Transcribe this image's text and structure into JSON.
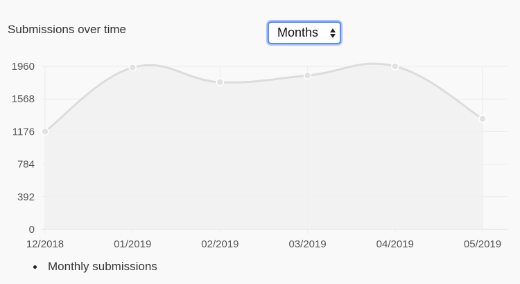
{
  "title": "Submissions over time",
  "period_select": {
    "selected": "Months"
  },
  "legend": {
    "items": [
      "Monthly submissions"
    ]
  },
  "chart_data": {
    "type": "area",
    "title": "Submissions over time",
    "xlabel": "",
    "ylabel": "",
    "x": [
      "12/2018",
      "01/2019",
      "02/2019",
      "03/2019",
      "04/2019",
      "05/2019"
    ],
    "yticks": [
      0,
      392,
      784,
      1176,
      1568,
      1960
    ],
    "ylim": [
      0,
      1960
    ],
    "grid": true,
    "legend_position": "bottom-left",
    "series": [
      {
        "name": "Monthly submissions",
        "values": [
          1176,
          1945,
          1770,
          1850,
          1960,
          1330
        ]
      }
    ],
    "colors": {
      "line": "#dcdcdc",
      "fill": "#f1f1f1",
      "point": "#e2e2e2",
      "grid": "#ebebeb"
    }
  }
}
